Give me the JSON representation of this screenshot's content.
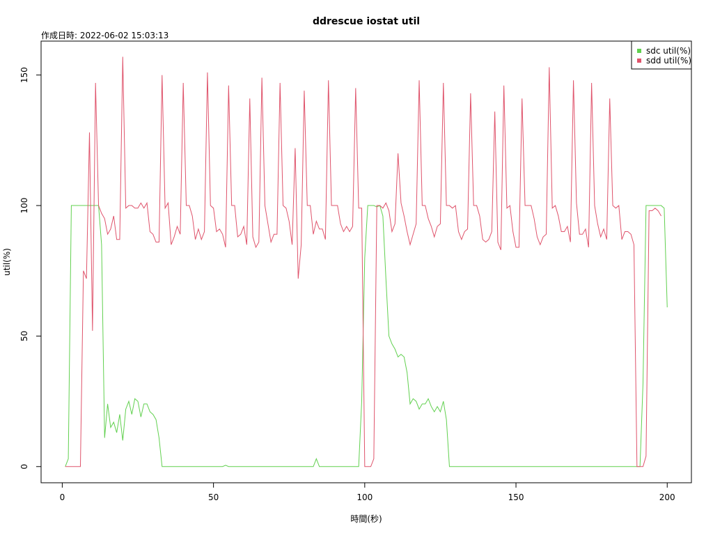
{
  "chart_data": {
    "type": "line",
    "title": "ddrescue iostat util",
    "subtitle": "作成日時: 2022-06-02 15:03:13",
    "xlabel": "時間(秒)",
    "ylabel": "util(%)",
    "xlim": [
      -7,
      208
    ],
    "ylim": [
      -6.2,
      163
    ],
    "xticks": [
      0,
      50,
      100,
      150,
      200
    ],
    "yticks": [
      0,
      50,
      100,
      150
    ],
    "xtick_labels": [
      "0",
      "50",
      "100",
      "150",
      "200"
    ],
    "ytick_labels": [
      "0",
      "50",
      "100",
      "150"
    ],
    "grid": false,
    "legend_position": "top-right",
    "series": [
      {
        "name": "sdc util(%)",
        "color": "#61D04F",
        "points": [
          [
            1,
            0
          ],
          [
            2,
            3
          ],
          [
            3,
            100
          ],
          [
            4,
            100
          ],
          [
            5,
            100
          ],
          [
            6,
            100
          ],
          [
            7,
            100
          ],
          [
            8,
            100
          ],
          [
            9,
            100
          ],
          [
            10,
            100
          ],
          [
            11,
            100
          ],
          [
            12,
            100
          ],
          [
            13,
            85
          ],
          [
            14,
            11
          ],
          [
            15,
            24
          ],
          [
            16,
            15
          ],
          [
            17,
            17
          ],
          [
            18,
            13
          ],
          [
            19,
            20
          ],
          [
            20,
            10
          ],
          [
            21,
            22
          ],
          [
            22,
            25
          ],
          [
            23,
            20
          ],
          [
            24,
            26
          ],
          [
            25,
            25
          ],
          [
            26,
            19
          ],
          [
            27,
            24
          ],
          [
            28,
            24
          ],
          [
            29,
            21
          ],
          [
            30,
            20
          ],
          [
            31,
            18
          ],
          [
            32,
            11
          ],
          [
            33,
            0
          ],
          [
            34,
            0
          ],
          [
            40,
            0
          ],
          [
            45,
            0
          ],
          [
            50,
            0
          ],
          [
            53,
            0
          ],
          [
            54,
            0.5
          ],
          [
            55,
            0
          ],
          [
            60,
            0
          ],
          [
            65,
            0
          ],
          [
            70,
            0
          ],
          [
            75,
            0
          ],
          [
            80,
            0
          ],
          [
            83,
            0
          ],
          [
            84,
            3
          ],
          [
            85,
            0
          ],
          [
            90,
            0
          ],
          [
            95,
            0
          ],
          [
            98,
            0
          ],
          [
            99,
            25
          ],
          [
            100,
            80
          ],
          [
            101,
            100
          ],
          [
            102,
            100
          ],
          [
            103,
            100
          ],
          [
            104,
            99.5
          ],
          [
            105,
            100
          ],
          [
            106,
            96
          ],
          [
            107,
            72
          ],
          [
            108,
            50
          ],
          [
            109,
            47
          ],
          [
            110,
            45
          ],
          [
            111,
            42
          ],
          [
            112,
            43
          ],
          [
            113,
            42
          ],
          [
            114,
            36
          ],
          [
            115,
            24
          ],
          [
            116,
            26
          ],
          [
            117,
            25
          ],
          [
            118,
            22
          ],
          [
            119,
            24
          ],
          [
            120,
            24
          ],
          [
            121,
            26
          ],
          [
            122,
            23
          ],
          [
            123,
            21
          ],
          [
            124,
            23
          ],
          [
            125,
            21
          ],
          [
            126,
            25
          ],
          [
            127,
            18
          ],
          [
            128,
            0
          ],
          [
            130,
            0
          ],
          [
            140,
            0
          ],
          [
            150,
            0
          ],
          [
            160,
            0
          ],
          [
            170,
            0
          ],
          [
            180,
            0
          ],
          [
            190,
            0
          ],
          [
            191,
            0
          ],
          [
            192,
            32
          ],
          [
            193,
            100
          ],
          [
            194,
            100
          ],
          [
            195,
            100
          ],
          [
            196,
            100
          ],
          [
            197,
            100
          ],
          [
            198,
            100
          ],
          [
            199,
            99
          ],
          [
            200,
            61
          ]
        ]
      },
      {
        "name": "sdd util(%)",
        "color": "#DF536B",
        "points": [
          [
            1,
            0
          ],
          [
            2,
            0
          ],
          [
            3,
            0
          ],
          [
            4,
            0
          ],
          [
            5,
            0
          ],
          [
            6,
            0
          ],
          [
            7,
            75
          ],
          [
            8,
            72
          ],
          [
            9,
            128
          ],
          [
            10,
            52
          ],
          [
            11,
            147
          ],
          [
            12,
            100
          ],
          [
            13,
            97
          ],
          [
            14,
            95
          ],
          [
            15,
            89
          ],
          [
            16,
            91
          ],
          [
            17,
            96
          ],
          [
            18,
            87
          ],
          [
            19,
            87
          ],
          [
            20,
            157
          ],
          [
            21,
            99
          ],
          [
            22,
            100
          ],
          [
            23,
            100
          ],
          [
            24,
            99
          ],
          [
            25,
            99
          ],
          [
            26,
            101
          ],
          [
            27,
            99
          ],
          [
            28,
            101
          ],
          [
            29,
            90
          ],
          [
            30,
            89
          ],
          [
            31,
            86
          ],
          [
            32,
            86
          ],
          [
            33,
            150
          ],
          [
            34,
            99
          ],
          [
            35,
            101
          ],
          [
            36,
            85
          ],
          [
            37,
            88
          ],
          [
            38,
            92
          ],
          [
            39,
            89
          ],
          [
            40,
            147
          ],
          [
            41,
            100
          ],
          [
            42,
            100
          ],
          [
            43,
            96
          ],
          [
            44,
            87
          ],
          [
            45,
            91
          ],
          [
            46,
            87
          ],
          [
            47,
            90
          ],
          [
            48,
            151
          ],
          [
            49,
            100
          ],
          [
            50,
            99
          ],
          [
            51,
            90
          ],
          [
            52,
            91
          ],
          [
            53,
            89
          ],
          [
            54,
            84
          ],
          [
            55,
            146
          ],
          [
            56,
            100
          ],
          [
            57,
            100
          ],
          [
            58,
            88
          ],
          [
            59,
            89
          ],
          [
            60,
            92
          ],
          [
            61,
            85
          ],
          [
            62,
            141
          ],
          [
            63,
            88
          ],
          [
            64,
            84
          ],
          [
            65,
            86
          ],
          [
            66,
            149
          ],
          [
            67,
            100
          ],
          [
            68,
            93
          ],
          [
            69,
            86
          ],
          [
            70,
            89
          ],
          [
            71,
            89
          ],
          [
            72,
            147
          ],
          [
            73,
            100
          ],
          [
            74,
            99
          ],
          [
            75,
            94
          ],
          [
            76,
            85
          ],
          [
            77,
            122
          ],
          [
            78,
            72
          ],
          [
            79,
            85
          ],
          [
            80,
            144
          ],
          [
            81,
            100
          ],
          [
            82,
            100
          ],
          [
            83,
            89
          ],
          [
            84,
            94
          ],
          [
            85,
            91
          ],
          [
            86,
            91
          ],
          [
            87,
            87
          ],
          [
            88,
            148
          ],
          [
            89,
            100
          ],
          [
            90,
            100
          ],
          [
            91,
            100
          ],
          [
            92,
            93
          ],
          [
            93,
            90
          ],
          [
            94,
            92
          ],
          [
            95,
            90
          ],
          [
            96,
            92
          ],
          [
            97,
            145
          ],
          [
            98,
            99
          ],
          [
            99,
            99
          ],
          [
            100,
            0
          ],
          [
            101,
            0
          ],
          [
            102,
            0
          ],
          [
            103,
            3
          ],
          [
            104,
            100
          ],
          [
            105,
            100
          ],
          [
            106,
            99
          ],
          [
            107,
            101
          ],
          [
            108,
            98
          ],
          [
            109,
            90
          ],
          [
            110,
            93
          ],
          [
            111,
            120
          ],
          [
            112,
            101
          ],
          [
            113,
            96
          ],
          [
            114,
            90
          ],
          [
            115,
            85
          ],
          [
            116,
            89
          ],
          [
            117,
            93
          ],
          [
            118,
            148
          ],
          [
            119,
            100
          ],
          [
            120,
            100
          ],
          [
            121,
            95
          ],
          [
            122,
            92
          ],
          [
            123,
            88
          ],
          [
            124,
            92
          ],
          [
            125,
            93
          ],
          [
            126,
            147
          ],
          [
            127,
            100
          ],
          [
            128,
            100
          ],
          [
            129,
            99
          ],
          [
            130,
            100
          ],
          [
            131,
            90
          ],
          [
            132,
            87
          ],
          [
            133,
            90
          ],
          [
            134,
            91
          ],
          [
            135,
            143
          ],
          [
            136,
            100
          ],
          [
            137,
            100
          ],
          [
            138,
            96
          ],
          [
            139,
            87
          ],
          [
            140,
            86
          ],
          [
            141,
            87
          ],
          [
            142,
            90
          ],
          [
            143,
            136
          ],
          [
            144,
            86
          ],
          [
            145,
            83
          ],
          [
            146,
            146
          ],
          [
            147,
            99
          ],
          [
            148,
            100
          ],
          [
            149,
            90
          ],
          [
            150,
            84
          ],
          [
            151,
            84
          ],
          [
            152,
            141
          ],
          [
            153,
            100
          ],
          [
            154,
            100
          ],
          [
            155,
            100
          ],
          [
            156,
            95
          ],
          [
            157,
            88
          ],
          [
            158,
            85
          ],
          [
            159,
            88
          ],
          [
            160,
            89
          ],
          [
            161,
            153
          ],
          [
            162,
            99
          ],
          [
            163,
            100
          ],
          [
            164,
            96
          ],
          [
            165,
            90
          ],
          [
            166,
            90
          ],
          [
            167,
            92
          ],
          [
            168,
            86
          ],
          [
            169,
            148
          ],
          [
            170,
            101
          ],
          [
            171,
            89
          ],
          [
            172,
            89
          ],
          [
            173,
            91
          ],
          [
            174,
            84
          ],
          [
            175,
            147
          ],
          [
            176,
            100
          ],
          [
            177,
            93
          ],
          [
            178,
            88
          ],
          [
            179,
            91
          ],
          [
            180,
            87
          ],
          [
            181,
            141
          ],
          [
            182,
            100
          ],
          [
            183,
            99
          ],
          [
            184,
            100
          ],
          [
            185,
            87
          ],
          [
            186,
            90
          ],
          [
            187,
            90
          ],
          [
            188,
            89
          ],
          [
            189,
            85
          ],
          [
            190,
            0
          ],
          [
            191,
            0
          ],
          [
            192,
            0
          ],
          [
            193,
            4
          ],
          [
            194,
            98
          ],
          [
            195,
            98
          ],
          [
            196,
            99
          ],
          [
            197,
            98
          ],
          [
            198,
            96
          ]
        ]
      }
    ]
  }
}
